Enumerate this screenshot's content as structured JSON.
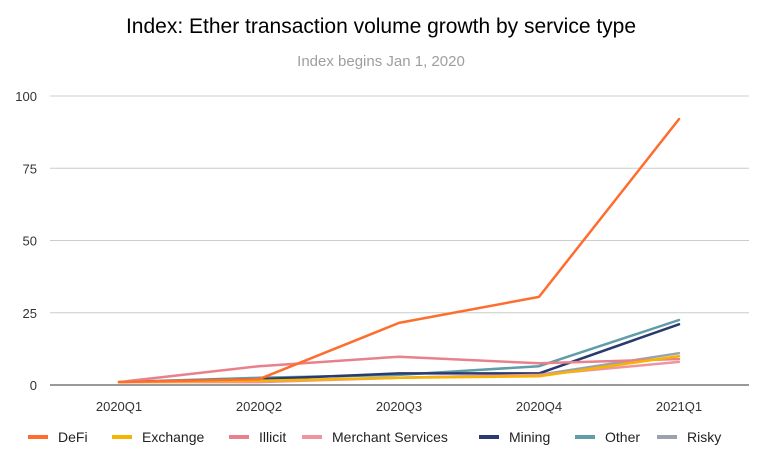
{
  "chart_data": {
    "type": "line",
    "title": "Index: Ether transaction volume growth by service type",
    "subtitle": "Index begins Jan 1, 2020",
    "xlabel": "",
    "ylabel": "",
    "categories": [
      "2020Q1",
      "2020Q2",
      "2020Q3",
      "2020Q4",
      "2021Q1"
    ],
    "ylim": [
      0,
      100
    ],
    "yticks": [
      0,
      25,
      50,
      75,
      100
    ],
    "grid": true,
    "legend_position": "bottom",
    "series": [
      {
        "name": "DeFi",
        "color": "#ff6d2d",
        "values": [
          1,
          2,
          21.5,
          30.5,
          92
        ]
      },
      {
        "name": "Exchange",
        "color": "#f6b400",
        "values": [
          1,
          1.5,
          2.5,
          3,
          10
        ]
      },
      {
        "name": "Illicit",
        "color": "#e8818b",
        "values": [
          1,
          6.5,
          9.8,
          7.5,
          9
        ]
      },
      {
        "name": "Merchant Services",
        "color": "#f0949e",
        "values": [
          1,
          1,
          2.5,
          3.5,
          8
        ]
      },
      {
        "name": "Mining",
        "color": "#2a3a6e",
        "values": [
          1,
          2,
          4,
          4,
          21
        ]
      },
      {
        "name": "Other",
        "color": "#5f9ea8",
        "values": [
          1,
          2.5,
          3.5,
          6.5,
          22.5
        ]
      },
      {
        "name": "Risky",
        "color": "#9aa3ad",
        "values": [
          1,
          1.5,
          2.5,
          3.5,
          11
        ]
      }
    ]
  }
}
